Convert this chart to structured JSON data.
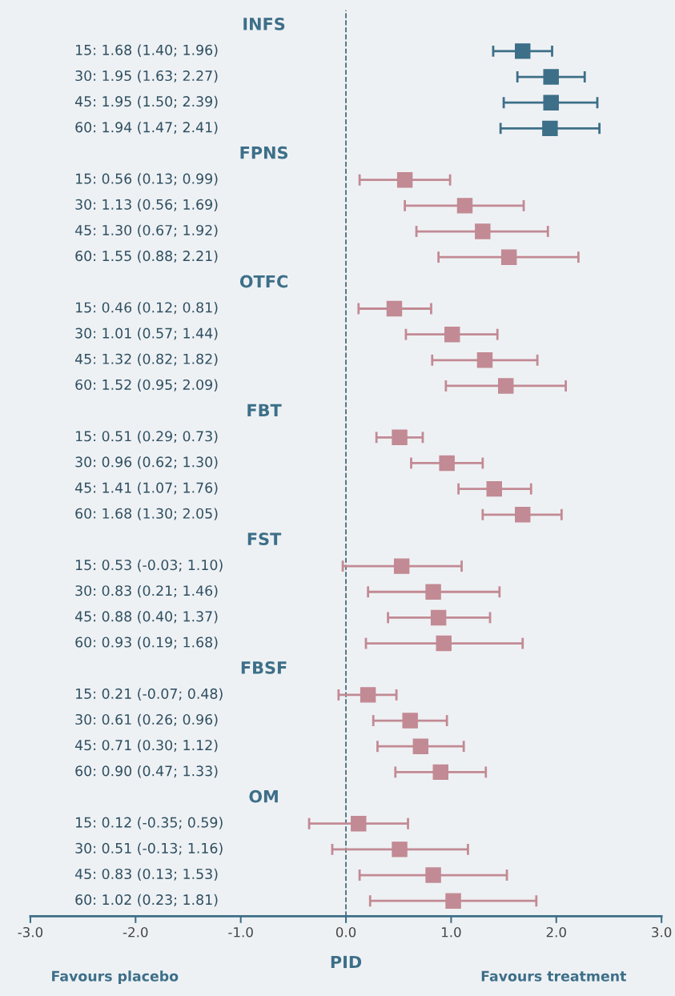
{
  "chart_data": {
    "type": "scatter",
    "orientation": "horizontal",
    "xlabel": "PID",
    "marker": "square",
    "grid": false,
    "categories": [
      "INFS",
      "15: 1.68 (1.40; 1.96)",
      "30: 1.95 (1.63; 2.27)",
      "45: 1.95 (1.50; 2.39)",
      "60: 1.94 (1.47; 2.41)",
      "FPNS",
      "15: 0.56 (0.13; 0.99)",
      "30: 1.13 (0.56; 1.69)",
      "45: 1.30 (0.67; 1.92)",
      "60: 1.55 (0.88; 2.21)",
      "OTFC",
      "15: 0.46 (0.12; 0.81)",
      "30: 1.01 (0.57; 1.44)",
      "45: 1.32 (0.82; 1.82)",
      "60: 1.52 (0.95; 2.09)",
      "FBT",
      "15: 0.51 (0.29; 0.73)",
      "30: 0.96 (0.62; 1.30)",
      "45: 1.41 (1.07; 1.76)",
      "60: 1.68 (1.30; 2.05)",
      "FST",
      "15: 0.53 (-0.03; 1.10)",
      "30: 0.83 (0.21; 1.46)",
      "45: 0.88 (0.40; 1.37)",
      "60: 0.93 (0.19; 1.68)",
      "FBSF",
      "15: 0.21 (-0.07; 0.48)",
      "30: 0.61 (0.26; 0.96)",
      "45: 0.71 (0.30; 1.12)",
      "60: 0.90 (0.47; 1.33)",
      "OM",
      "15: 0.12 (-0.35; 0.59)",
      "30: 0.51 (-0.13; 1.16)",
      "45: 0.83 (0.13; 1.53)",
      "60: 1.02 (0.23; 1.81)"
    ],
    "values": [
      null,
      1.68,
      1.95,
      1.95,
      1.94,
      null,
      0.56,
      1.13,
      1.3,
      1.55,
      null,
      0.46,
      1.01,
      1.32,
      1.52,
      null,
      0.51,
      0.96,
      1.41,
      1.68,
      null,
      0.53,
      0.83,
      0.88,
      0.93,
      null,
      0.21,
      0.61,
      0.71,
      0.9,
      null,
      0.12,
      0.51,
      0.83,
      1.02
    ],
    "errors": [
      null,
      [
        1.4,
        1.96
      ],
      [
        1.63,
        2.27
      ],
      [
        1.5,
        2.39
      ],
      [
        1.47,
        2.41
      ],
      null,
      [
        0.13,
        0.99
      ],
      [
        0.56,
        1.69
      ],
      [
        0.67,
        1.92
      ],
      [
        0.88,
        2.21
      ],
      null,
      [
        0.12,
        0.81
      ],
      [
        0.57,
        1.44
      ],
      [
        0.82,
        1.82
      ],
      [
        0.95,
        2.09
      ],
      null,
      [
        0.29,
        0.73
      ],
      [
        0.62,
        1.3
      ],
      [
        1.07,
        1.76
      ],
      [
        1.3,
        2.05
      ],
      null,
      [
        -0.03,
        1.1
      ],
      [
        0.21,
        1.46
      ],
      [
        0.4,
        1.37
      ],
      [
        0.19,
        1.68
      ],
      null,
      [
        -0.07,
        0.48
      ],
      [
        0.26,
        0.96
      ],
      [
        0.3,
        1.12
      ],
      [
        0.47,
        1.33
      ],
      null,
      [
        -0.35,
        0.59
      ],
      [
        -0.13,
        1.16
      ],
      [
        0.13,
        1.53
      ],
      [
        0.23,
        1.81
      ]
    ],
    "colors": [
      null,
      "#3d6f88",
      "#3d6f88",
      "#3d6f88",
      "#3d6f88",
      null,
      "#c28a94",
      "#c28a94",
      "#c28a94",
      "#c28a94",
      null,
      "#c28a94",
      "#c28a94",
      "#c28a94",
      "#c28a94",
      null,
      "#c28a94",
      "#c28a94",
      "#c28a94",
      "#c28a94",
      null,
      "#c28a94",
      "#c28a94",
      "#c28a94",
      "#c28a94",
      null,
      "#c28a94",
      "#c28a94",
      "#c28a94",
      "#c28a94",
      null,
      "#c28a94",
      "#c28a94",
      "#c28a94",
      "#c28a94"
    ],
    "xlim": [
      -3,
      3
    ],
    "xticks": [
      {
        "value": -3,
        "label": "-3.0"
      },
      {
        "value": -2,
        "label": "-2.0"
      },
      {
        "value": -1,
        "label": "-1.0"
      },
      {
        "value": 0,
        "label": "0.0"
      },
      {
        "value": 1,
        "label": "1.0"
      },
      {
        "value": 2,
        "label": "2.0"
      },
      {
        "value": 3,
        "label": "3.0"
      }
    ],
    "ref_lines": [
      {
        "axis": "x",
        "value": 0,
        "label": null,
        "color": "#3d5f70",
        "line_style": "dashed"
      }
    ],
    "annotations": [
      "Favours placebo",
      "Favours treatment"
    ]
  }
}
